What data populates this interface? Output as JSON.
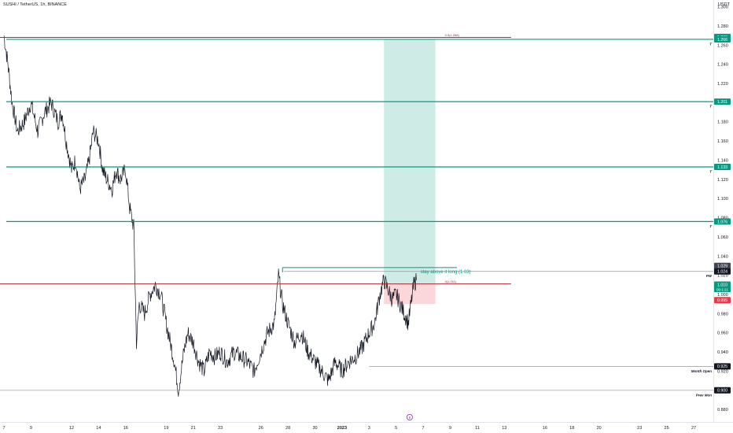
{
  "header": {
    "title": "SUSHI / TetherUS, 1h, BINANCE",
    "currency": "USDT"
  },
  "chart_data": {
    "type": "candlestick",
    "ylim": [
      0.867,
      1.307
    ],
    "y_ticks": [
      1.3,
      1.28,
      1.26,
      1.24,
      1.22,
      1.2,
      1.18,
      1.16,
      1.14,
      1.12,
      1.1,
      1.08,
      1.06,
      1.04,
      1.02,
      1.0,
      0.98,
      0.96,
      0.94,
      0.92,
      0.9,
      0.88
    ],
    "x_ticks": [
      {
        "label": "7",
        "d": 7
      },
      {
        "label": "9",
        "d": 9
      },
      {
        "label": "12",
        "d": 12
      },
      {
        "label": "14",
        "d": 14
      },
      {
        "label": "16",
        "d": 16
      },
      {
        "label": "19",
        "d": 19
      },
      {
        "label": "21",
        "d": 21
      },
      {
        "label": "23",
        "d": 23
      },
      {
        "label": "26",
        "d": 26
      },
      {
        "label": "28",
        "d": 28
      },
      {
        "label": "30",
        "d": 30
      },
      {
        "label": "2023",
        "d": 32
      },
      {
        "label": "3",
        "d": 34
      },
      {
        "label": "5",
        "d": 36
      },
      {
        "label": "7",
        "d": 38
      },
      {
        "label": "9",
        "d": 40
      },
      {
        "label": "11",
        "d": 42
      },
      {
        "label": "13",
        "d": 44
      },
      {
        "label": "16",
        "d": 47
      },
      {
        "label": "18",
        "d": 49
      },
      {
        "label": "20",
        "d": 51
      },
      {
        "label": "23",
        "d": 54
      },
      {
        "label": "25",
        "d": 56
      },
      {
        "label": "27",
        "d": 58
      }
    ],
    "price_path": [
      [
        7.0,
        1.27
      ],
      [
        7.3,
        1.24
      ],
      [
        7.6,
        1.2
      ],
      [
        8.0,
        1.17
      ],
      [
        8.5,
        1.18
      ],
      [
        9.0,
        1.2
      ],
      [
        9.5,
        1.17
      ],
      [
        10.0,
        1.19
      ],
      [
        10.5,
        1.2
      ],
      [
        11.0,
        1.18
      ],
      [
        11.3,
        1.19
      ],
      [
        11.6,
        1.16
      ],
      [
        12.0,
        1.13
      ],
      [
        12.3,
        1.14
      ],
      [
        12.6,
        1.11
      ],
      [
        13.0,
        1.12
      ],
      [
        13.3,
        1.14
      ],
      [
        13.6,
        1.17
      ],
      [
        14.0,
        1.16
      ],
      [
        14.3,
        1.13
      ],
      [
        14.6,
        1.12
      ],
      [
        15.0,
        1.11
      ],
      [
        15.3,
        1.13
      ],
      [
        15.6,
        1.12
      ],
      [
        16.0,
        1.13
      ],
      [
        16.3,
        1.09
      ],
      [
        16.6,
        1.07
      ],
      [
        16.8,
        0.95
      ],
      [
        17.0,
        0.99
      ],
      [
        17.4,
        0.98
      ],
      [
        17.8,
        1.0
      ],
      [
        18.2,
        1.01
      ],
      [
        18.6,
        1.0
      ],
      [
        19.0,
        0.97
      ],
      [
        19.3,
        0.95
      ],
      [
        19.6,
        0.93
      ],
      [
        19.9,
        0.9
      ],
      [
        20.3,
        0.94
      ],
      [
        20.6,
        0.96
      ],
      [
        21.0,
        0.95
      ],
      [
        21.4,
        0.93
      ],
      [
        21.8,
        0.92
      ],
      [
        22.2,
        0.94
      ],
      [
        22.6,
        0.935
      ],
      [
        23.0,
        0.94
      ],
      [
        23.5,
        0.93
      ],
      [
        24.0,
        0.94
      ],
      [
        24.5,
        0.935
      ],
      [
        25.0,
        0.93
      ],
      [
        25.5,
        0.92
      ],
      [
        26.0,
        0.94
      ],
      [
        26.5,
        0.96
      ],
      [
        27.0,
        0.97
      ],
      [
        27.3,
        1.02
      ],
      [
        27.6,
        0.99
      ],
      [
        28.0,
        0.97
      ],
      [
        28.5,
        0.95
      ],
      [
        29.0,
        0.96
      ],
      [
        29.5,
        0.94
      ],
      [
        30.0,
        0.93
      ],
      [
        30.5,
        0.92
      ],
      [
        31.0,
        0.91
      ],
      [
        31.5,
        0.93
      ],
      [
        32.0,
        0.92
      ],
      [
        32.5,
        0.93
      ],
      [
        33.0,
        0.935
      ],
      [
        33.5,
        0.945
      ],
      [
        34.0,
        0.96
      ],
      [
        34.4,
        0.97
      ],
      [
        34.8,
        1.0
      ],
      [
        35.1,
        1.015
      ],
      [
        35.4,
        1.005
      ],
      [
        35.7,
        0.995
      ],
      [
        36.0,
        1.0
      ],
      [
        36.3,
        0.99
      ],
      [
        36.6,
        0.98
      ],
      [
        36.9,
        0.97
      ],
      [
        37.1,
        0.99
      ],
      [
        37.3,
        1.01
      ],
      [
        37.5,
        1.015
      ]
    ],
    "levels": [
      {
        "label": "T",
        "price": 1.266,
        "tag": "1.266",
        "color": "#089981"
      },
      {
        "label": "T",
        "price": 1.201,
        "tag": "1.201",
        "color": "#089981"
      },
      {
        "label": "T",
        "price": 1.133,
        "tag": "1.133",
        "color": "#089981"
      },
      {
        "label": "T",
        "price": 1.076,
        "tag": "1.076",
        "color": "#089981"
      },
      {
        "label": "PW",
        "price": 1.024,
        "tag": "1.024",
        "color": "#131722"
      },
      {
        "label": "Month Open",
        "price": 0.925,
        "tag": "0.925",
        "color": "#131722"
      },
      {
        "label": "Prev Mon",
        "price": 0.9,
        "tag": "0.900",
        "color": "#131722"
      }
    ],
    "fib_lines": [
      {
        "label": "0.5(1.268)",
        "price": 1.268,
        "color": "#b22833"
      },
      {
        "label": "0(1.011)",
        "price": 1.011,
        "color": "#b22833"
      }
    ],
    "extra_tags": [
      {
        "text": "1.268",
        "price": 1.2685,
        "color": "#089981"
      },
      {
        "text": "1.029",
        "price": 1.0297,
        "color": "#434651"
      },
      {
        "text": "1.010",
        "price": 1.0102,
        "color": "#089981"
      },
      {
        "text": "0.995",
        "price": 0.994,
        "color": "#f23645"
      }
    ],
    "countdown": "00:1:21",
    "position": {
      "d_start": 35.1,
      "d_end": 38.9,
      "entry": 1.011,
      "target": 1.266,
      "stop": 0.99
    },
    "annotation": {
      "text": "stay above it long (1.03)",
      "price": 1.028,
      "d_start": 27.6,
      "d_end": 40.5
    },
    "mark_circle": {
      "text": "8",
      "d": 37.0
    }
  }
}
